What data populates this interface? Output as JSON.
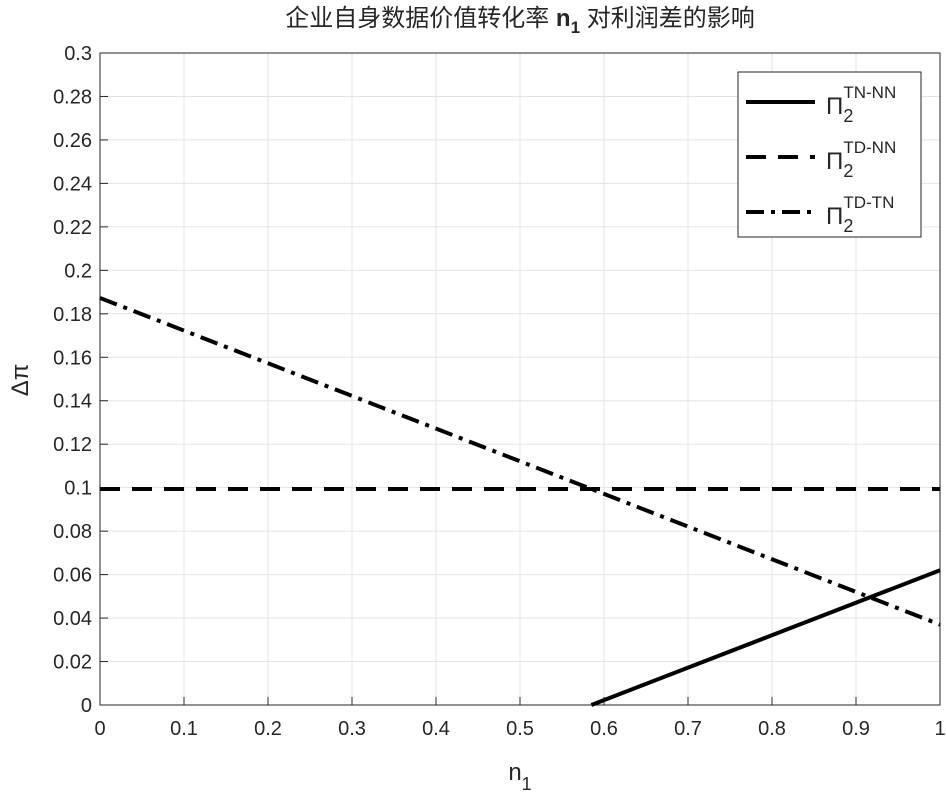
{
  "chart_data": {
    "type": "line",
    "title": {
      "text": "企业自身数据价值转化率 ",
      "var": "n",
      "sub": "1",
      "rest": " 对利润差的影响"
    },
    "x_label": {
      "base": "n",
      "sub": "1"
    },
    "y_label": "Δπ",
    "xlim": [
      0,
      1
    ],
    "xticks": [
      0,
      0.1,
      0.2,
      0.3,
      0.4,
      0.5,
      0.6,
      0.7,
      0.8,
      0.9,
      1
    ],
    "ylim": [
      0,
      0.3
    ],
    "yticks": [
      0,
      0.02,
      0.04,
      0.06,
      0.08,
      0.1,
      0.12,
      0.14,
      0.16,
      0.18,
      0.2,
      0.22,
      0.24,
      0.26,
      0.28,
      0.3
    ],
    "grid": true,
    "legend": "northeast",
    "series": [
      {
        "name": {
          "base": "Π",
          "sub": "2",
          "sup": "TN-NN"
        },
        "color": "#000000",
        "style": "solid",
        "x": [
          0.585,
          1
        ],
        "values": [
          0,
          0.062
        ]
      },
      {
        "name": {
          "base": "Π",
          "sub": "2",
          "sup": "TD-NN"
        },
        "color": "#000000",
        "style": "dashed",
        "x": [
          0,
          1
        ],
        "values": [
          0.0994,
          0.0994
        ]
      },
      {
        "name": {
          "base": "Π",
          "sub": "2",
          "sup": "TD-TN"
        },
        "color": "#000000",
        "style": "dashdot",
        "x": [
          0,
          1
        ],
        "values": [
          0.1873,
          0.037
        ]
      }
    ]
  }
}
